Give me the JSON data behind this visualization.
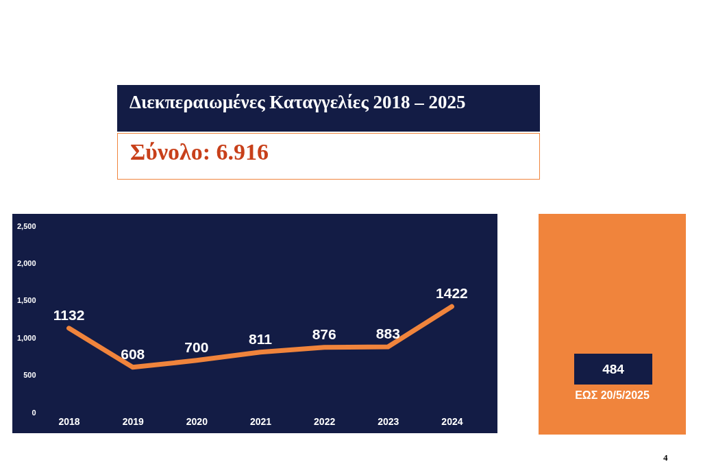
{
  "chart_data": {
    "type": "line",
    "title": "Διεκπεραιωμένες Καταγγελίες 2018 – 2025",
    "subtitle": "Σύνολο: 6.916",
    "categories": [
      "2018",
      "2019",
      "2020",
      "2021",
      "2022",
      "2023",
      "2024"
    ],
    "series": [
      {
        "color": "#f0843c",
        "values": [
          1132,
          608,
          700,
          811,
          876,
          883,
          1422
        ]
      }
    ],
    "ylim": [
      0,
      2500
    ],
    "yticks": [
      0,
      500,
      {
        "value": 1000,
        "label": "1,000"
      },
      {
        "value": 1500,
        "label": "1,500"
      },
      {
        "value": 2000,
        "label": "2,000"
      },
      {
        "value": 2500,
        "label": "2,500"
      }
    ],
    "data_labels": true,
    "annotations": [
      "484",
      "ΕΩΣ 20/5/2025",
      "4"
    ]
  }
}
